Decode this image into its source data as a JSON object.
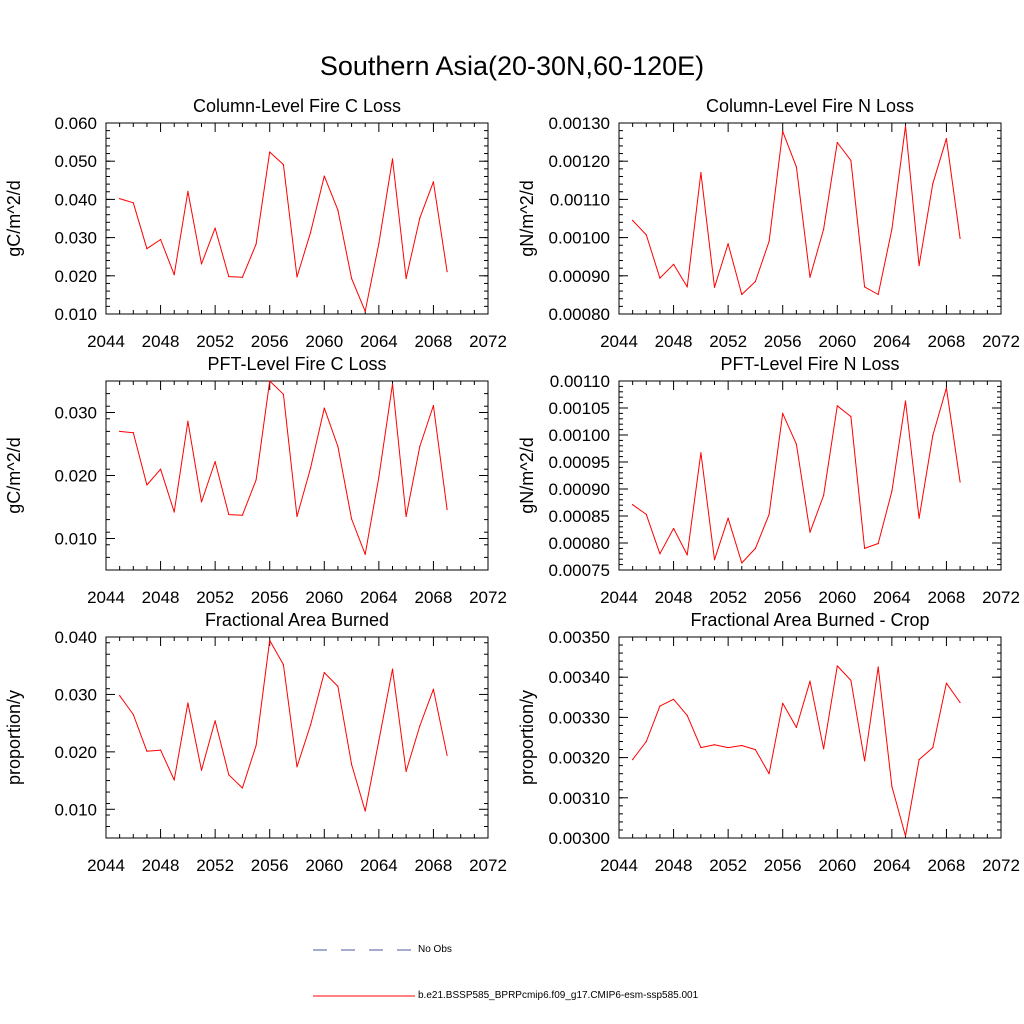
{
  "title": "Southern Asia(20-30N,60-120E)",
  "legend": {
    "obs_label": "No Obs",
    "obs_color": "#4b5aa0",
    "model_label": "b.e21.BSSP585_BPRPcmip6.f09_g17.CMIP6-esm-ssp585.001",
    "model_color": "#ff0000"
  },
  "chart_data": [
    {
      "type": "line",
      "title": "Column-Level Fire C Loss",
      "ylabel": "gC/m^2/d",
      "xlim": [
        2044,
        2072
      ],
      "ylim": [
        0.01,
        0.06
      ],
      "xticks": [
        2044,
        2048,
        2052,
        2056,
        2060,
        2064,
        2068,
        2072
      ],
      "yticks": [
        "0.010",
        "0.020",
        "0.030",
        "0.040",
        "0.050",
        "0.060"
      ],
      "grid": false,
      "x": [
        2045,
        2046,
        2047,
        2048,
        2049,
        2050,
        2051,
        2052,
        2053,
        2054,
        2055,
        2056,
        2057,
        2058,
        2059,
        2060,
        2061,
        2062,
        2063,
        2064,
        2065,
        2066,
        2067,
        2068,
        2069
      ],
      "series": [
        {
          "color": "#ff0000",
          "values": [
            0.0402,
            0.0391,
            0.0271,
            0.0295,
            0.0203,
            0.0421,
            0.0231,
            0.0325,
            0.0198,
            0.0196,
            0.0283,
            0.0524,
            0.0491,
            0.0197,
            0.0314,
            0.0461,
            0.0372,
            0.0193,
            0.0107,
            0.0285,
            0.0506,
            0.0193,
            0.0351,
            0.0446,
            0.0211
          ]
        }
      ]
    },
    {
      "type": "line",
      "title": "Column-Level Fire N Loss",
      "ylabel": "gN/m^2/d",
      "xlim": [
        2044,
        2072
      ],
      "ylim": [
        0.0008,
        0.0013
      ],
      "xticks": [
        2044,
        2048,
        2052,
        2056,
        2060,
        2064,
        2068,
        2072
      ],
      "yticks": [
        "0.00080",
        "0.00090",
        "0.00100",
        "0.00110",
        "0.00120",
        "0.00130"
      ],
      "grid": false,
      "x": [
        2045,
        2046,
        2047,
        2048,
        2049,
        2050,
        2051,
        2052,
        2053,
        2054,
        2055,
        2056,
        2057,
        2058,
        2059,
        2060,
        2061,
        2062,
        2063,
        2064,
        2065,
        2066,
        2067,
        2068,
        2069
      ],
      "series": [
        {
          "color": "#ff0000",
          "values": [
            0.001045,
            0.001007,
            0.000894,
            0.00093,
            0.000871,
            0.00117,
            0.00087,
            0.000984,
            0.000851,
            0.000885,
            0.00099,
            0.001278,
            0.001185,
            0.000896,
            0.001022,
            0.001249,
            0.001202,
            0.000871,
            0.000851,
            0.001022,
            0.001292,
            0.000927,
            0.001141,
            0.001259,
            0.000998
          ]
        }
      ]
    },
    {
      "type": "line",
      "title": "PFT-Level Fire C Loss",
      "ylabel": "gC/m^2/d",
      "xlim": [
        2044,
        2072
      ],
      "ylim": [
        0.005,
        0.035
      ],
      "xticks": [
        2044,
        2048,
        2052,
        2056,
        2060,
        2064,
        2068,
        2072
      ],
      "yticks": [
        "0.010",
        "0.020",
        "0.030"
      ],
      "ytick_values": [
        0.01,
        0.02,
        0.03
      ],
      "grid": false,
      "x": [
        2045,
        2046,
        2047,
        2048,
        2049,
        2050,
        2051,
        2052,
        2053,
        2054,
        2055,
        2056,
        2057,
        2058,
        2059,
        2060,
        2061,
        2062,
        2063,
        2064,
        2065,
        2066,
        2067,
        2068,
        2069
      ],
      "series": [
        {
          "color": "#ff0000",
          "values": [
            0.027,
            0.0268,
            0.0185,
            0.021,
            0.0142,
            0.0286,
            0.0158,
            0.0222,
            0.0138,
            0.0137,
            0.0193,
            0.035,
            0.0329,
            0.0135,
            0.0212,
            0.0307,
            0.0246,
            0.0131,
            0.0075,
            0.0198,
            0.0345,
            0.0135,
            0.0246,
            0.0311,
            0.0146
          ]
        }
      ]
    },
    {
      "type": "line",
      "title": "PFT-Level Fire N Loss",
      "ylabel": "gN/m^2/d",
      "xlim": [
        2044,
        2072
      ],
      "ylim": [
        0.00075,
        0.0011
      ],
      "xticks": [
        2044,
        2048,
        2052,
        2056,
        2060,
        2064,
        2068,
        2072
      ],
      "yticks": [
        "0.00075",
        "0.00080",
        "0.00085",
        "0.00090",
        "0.00095",
        "0.00100",
        "0.00105",
        "0.00110"
      ],
      "grid": false,
      "x": [
        2045,
        2046,
        2047,
        2048,
        2049,
        2050,
        2051,
        2052,
        2053,
        2054,
        2055,
        2056,
        2057,
        2058,
        2059,
        2060,
        2061,
        2062,
        2063,
        2064,
        2065,
        2066,
        2067,
        2068,
        2069
      ],
      "series": [
        {
          "color": "#ff0000",
          "values": [
            0.000871,
            0.000853,
            0.00078,
            0.000827,
            0.000778,
            0.000967,
            0.000769,
            0.000846,
            0.000763,
            0.00079,
            0.000853,
            0.00104,
            0.000983,
            0.00082,
            0.000888,
            0.001054,
            0.001034,
            0.00079,
            0.000799,
            0.000896,
            0.001063,
            0.000846,
            0.000999,
            0.001087,
            0.000913
          ]
        }
      ]
    },
    {
      "type": "line",
      "title": "Fractional Area Burned",
      "ylabel": "proportion/y",
      "xlim": [
        2044,
        2072
      ],
      "ylim": [
        0.005,
        0.04
      ],
      "xticks": [
        2044,
        2048,
        2052,
        2056,
        2060,
        2064,
        2068,
        2072
      ],
      "yticks": [
        "0.010",
        "0.020",
        "0.030",
        "0.040"
      ],
      "ytick_values": [
        0.01,
        0.02,
        0.03,
        0.04
      ],
      "grid": false,
      "x": [
        2045,
        2046,
        2047,
        2048,
        2049,
        2050,
        2051,
        2052,
        2053,
        2054,
        2055,
        2056,
        2057,
        2058,
        2059,
        2060,
        2061,
        2062,
        2063,
        2064,
        2065,
        2066,
        2067,
        2068,
        2069
      ],
      "series": [
        {
          "color": "#ff0000",
          "values": [
            0.0298,
            0.0265,
            0.0201,
            0.0203,
            0.0151,
            0.0285,
            0.0168,
            0.0254,
            0.016,
            0.0137,
            0.0211,
            0.0394,
            0.0352,
            0.0174,
            0.0247,
            0.0338,
            0.0314,
            0.0178,
            0.0097,
            0.022,
            0.0344,
            0.0166,
            0.0245,
            0.0309,
            0.0194
          ]
        }
      ]
    },
    {
      "type": "line",
      "title": "Fractional Area Burned - Crop",
      "ylabel": "proportion/y",
      "xlim": [
        2044,
        2072
      ],
      "ylim": [
        0.003,
        0.0035
      ],
      "xticks": [
        2044,
        2048,
        2052,
        2056,
        2060,
        2064,
        2068,
        2072
      ],
      "yticks": [
        "0.00300",
        "0.00310",
        "0.00320",
        "0.00330",
        "0.00340",
        "0.00350"
      ],
      "grid": false,
      "x": [
        2045,
        2046,
        2047,
        2048,
        2049,
        2050,
        2051,
        2052,
        2053,
        2054,
        2055,
        2056,
        2057,
        2058,
        2059,
        2060,
        2061,
        2062,
        2063,
        2064,
        2065,
        2066,
        2067,
        2068,
        2069
      ],
      "series": [
        {
          "color": "#ff0000",
          "values": [
            0.003195,
            0.00324,
            0.003328,
            0.003345,
            0.003305,
            0.003225,
            0.003232,
            0.003225,
            0.00323,
            0.00322,
            0.00316,
            0.003335,
            0.003275,
            0.00339,
            0.003222,
            0.003428,
            0.003392,
            0.003192,
            0.003425,
            0.003128,
            0.003005,
            0.003195,
            0.003225,
            0.003385,
            0.003337
          ]
        }
      ]
    }
  ]
}
